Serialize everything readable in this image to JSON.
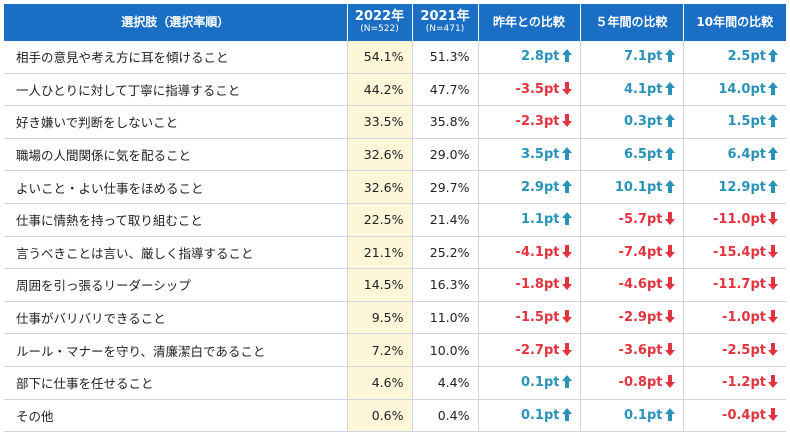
{
  "header": {
    "choice": "選択肢（選択率順）",
    "y2022": "2022年",
    "n2022": "(N=522)",
    "y2021": "2021年",
    "n2021": "(N=471)",
    "cmp_last_year": "昨年との比較",
    "cmp_5years": "５年間の比較",
    "cmp_10years": "10年間の比較"
  },
  "colors": {
    "header_bg": "#1a6fc4",
    "highlight_col": "#fdf6d9",
    "positive": "#2a92b8",
    "negative": "#e2343f"
  },
  "rows": [
    {
      "label": "相手の意見や考え方に耳を傾けること",
      "v2022": "54.1%",
      "v2021": "51.3%",
      "d1": "2.8pt",
      "d5": "7.1pt",
      "d10": "2.5pt"
    },
    {
      "label": "一人ひとりに対して丁寧に指導すること",
      "v2022": "44.2%",
      "v2021": "47.7%",
      "d1": "-3.5pt",
      "d5": "4.1pt",
      "d10": "14.0pt"
    },
    {
      "label": "好き嫌いで判断をしないこと",
      "v2022": "33.5%",
      "v2021": "35.8%",
      "d1": "-2.3pt",
      "d5": "0.3pt",
      "d10": "1.5pt"
    },
    {
      "label": "職場の人間関係に気を配ること",
      "v2022": "32.6%",
      "v2021": "29.0%",
      "d1": "3.5pt",
      "d5": "6.5pt",
      "d10": "6.4pt"
    },
    {
      "label": "よいこと・よい仕事をほめること",
      "v2022": "32.6%",
      "v2021": "29.7%",
      "d1": "2.9pt",
      "d5": "10.1pt",
      "d10": "12.9pt"
    },
    {
      "label": "仕事に情熱を持って取り組むこと",
      "v2022": "22.5%",
      "v2021": "21.4%",
      "d1": "1.1pt",
      "d5": "-5.7pt",
      "d10": "-11.0pt"
    },
    {
      "label": "言うべきことは言い、厳しく指導すること",
      "v2022": "21.1%",
      "v2021": "25.2%",
      "d1": "-4.1pt",
      "d5": "-7.4pt",
      "d10": "-15.4pt"
    },
    {
      "label": "周囲を引っ張るリーダーシップ",
      "v2022": "14.5%",
      "v2021": "16.3%",
      "d1": "-1.8pt",
      "d5": "-4.6pt",
      "d10": "-11.7pt"
    },
    {
      "label": "仕事がバリバリできること",
      "v2022": "9.5%",
      "v2021": "11.0%",
      "d1": "-1.5pt",
      "d5": "-2.9pt",
      "d10": "-1.0pt"
    },
    {
      "label": "ルール・マナーを守り、清廉潔白であること",
      "v2022": "7.2%",
      "v2021": "10.0%",
      "d1": "-2.7pt",
      "d5": "-3.6pt",
      "d10": "-2.5pt"
    },
    {
      "label": "部下に仕事を任せること",
      "v2022": "4.6%",
      "v2021": "4.4%",
      "d1": "0.1pt",
      "d5": "-0.8pt",
      "d10": "-1.2pt"
    },
    {
      "label": "その他",
      "v2022": "0.6%",
      "v2021": "0.4%",
      "d1": "0.1pt",
      "d5": "0.1pt",
      "d10": "-0.4pt"
    }
  ]
}
